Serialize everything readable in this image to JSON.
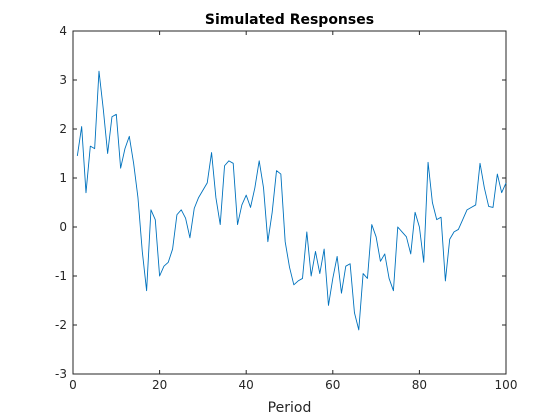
{
  "chart_data": {
    "type": "line",
    "title": "Simulated Responses",
    "xlabel": "Period",
    "ylabel": "",
    "xlim": [
      0,
      100
    ],
    "ylim": [
      -3,
      4
    ],
    "xticks": [
      0,
      20,
      40,
      60,
      80,
      100
    ],
    "yticks": [
      -3,
      -2,
      -1,
      0,
      1,
      2,
      3,
      4
    ],
    "grid": false,
    "line_color": "#0072BD",
    "series": [
      {
        "x": [
          1,
          2,
          3,
          4,
          5,
          6,
          7,
          8,
          9,
          10,
          11,
          12,
          13,
          14,
          15,
          16,
          17,
          18,
          19,
          20,
          21,
          22,
          23,
          24,
          25,
          26,
          27,
          28,
          29,
          30,
          31,
          32,
          33,
          34,
          35,
          36,
          37,
          38,
          39,
          40,
          41,
          42,
          43,
          44,
          45,
          46,
          47,
          48,
          49,
          50,
          51,
          52,
          53,
          54,
          55,
          56,
          57,
          58,
          59,
          60,
          61,
          62,
          63,
          64,
          65,
          66,
          67,
          68,
          69,
          70,
          71,
          72,
          73,
          74,
          75,
          76,
          77,
          78,
          79,
          80,
          81,
          82,
          83,
          84,
          85,
          86,
          87,
          88,
          89,
          90,
          91,
          92,
          93,
          94,
          95,
          96,
          97,
          98,
          99,
          100
        ],
        "values": [
          1.45,
          2.05,
          0.7,
          1.65,
          1.6,
          3.18,
          2.4,
          1.5,
          2.25,
          2.3,
          1.2,
          1.6,
          1.85,
          1.3,
          0.6,
          -0.5,
          -1.3,
          0.35,
          0.15,
          -1.0,
          -0.8,
          -0.72,
          -0.45,
          0.25,
          0.35,
          0.18,
          -0.22,
          0.38,
          0.6,
          0.75,
          0.9,
          1.52,
          0.6,
          0.05,
          1.25,
          1.35,
          1.3,
          0.05,
          0.45,
          0.65,
          0.4,
          0.8,
          1.35,
          0.8,
          -0.3,
          0.3,
          1.15,
          1.08,
          -0.3,
          -0.82,
          -1.18,
          -1.1,
          -1.05,
          -0.1,
          -1.0,
          -0.5,
          -0.95,
          -0.45,
          -1.6,
          -1.05,
          -0.6,
          -1.35,
          -0.8,
          -0.75,
          -1.75,
          -2.1,
          -0.95,
          -1.05,
          0.05,
          -0.2,
          -0.7,
          -0.55,
          -1.05,
          -1.3,
          0.0,
          -0.1,
          -0.2,
          -0.55,
          0.3,
          0.0,
          -0.72,
          1.32,
          0.5,
          0.15,
          0.2,
          -1.1,
          -0.25,
          -0.1,
          -0.05,
          0.15,
          0.35,
          0.4,
          0.45,
          1.3,
          0.8,
          0.42,
          0.4,
          1.08,
          0.7,
          0.9
        ]
      }
    ]
  }
}
